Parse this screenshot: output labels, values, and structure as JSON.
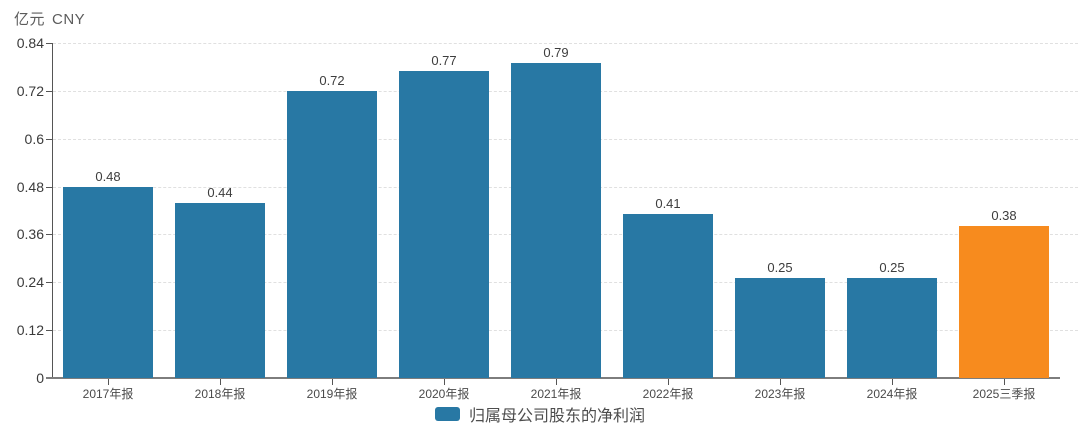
{
  "colors": {
    "bar": "#2878a4",
    "highlight": "#f78b1e",
    "grid": "#e0e0e0",
    "axis": "#555555",
    "value_text": "#3d3d3d",
    "tick_text": "#3a3a3a"
  },
  "legend": {
    "label": "归属母公司股东的净利润"
  },
  "chart_data": {
    "type": "bar",
    "title": "",
    "unit": {
      "primary": "亿元",
      "secondary": "CNY"
    },
    "ylabel": "亿元 CNY",
    "categories": [
      "2017年报",
      "2018年报",
      "2019年报",
      "2020年报",
      "2021年报",
      "2022年报",
      "2023年报",
      "2024年报",
      "2025三季报"
    ],
    "values": [
      0.48,
      0.44,
      0.72,
      0.77,
      0.79,
      0.41,
      0.25,
      0.25,
      0.38
    ],
    "value_labels": [
      "0.48",
      "0.44",
      "0.72",
      "0.77",
      "0.79",
      "0.41",
      "0.25",
      "0.25",
      "0.38"
    ],
    "highlight_index": 8,
    "ylim": [
      0,
      0.84
    ],
    "ytick_labels": [
      "0",
      "0.12",
      "0.24",
      "0.36",
      "0.48",
      "0.6",
      "0.72",
      "0.84"
    ],
    "grid": "horizontal-dashed",
    "legend_position": "bottom-center",
    "series": [
      {
        "name": "归属母公司股东的净利润",
        "values": [
          0.48,
          0.44,
          0.72,
          0.77,
          0.79,
          0.41,
          0.25,
          0.25,
          0.38
        ]
      }
    ]
  }
}
